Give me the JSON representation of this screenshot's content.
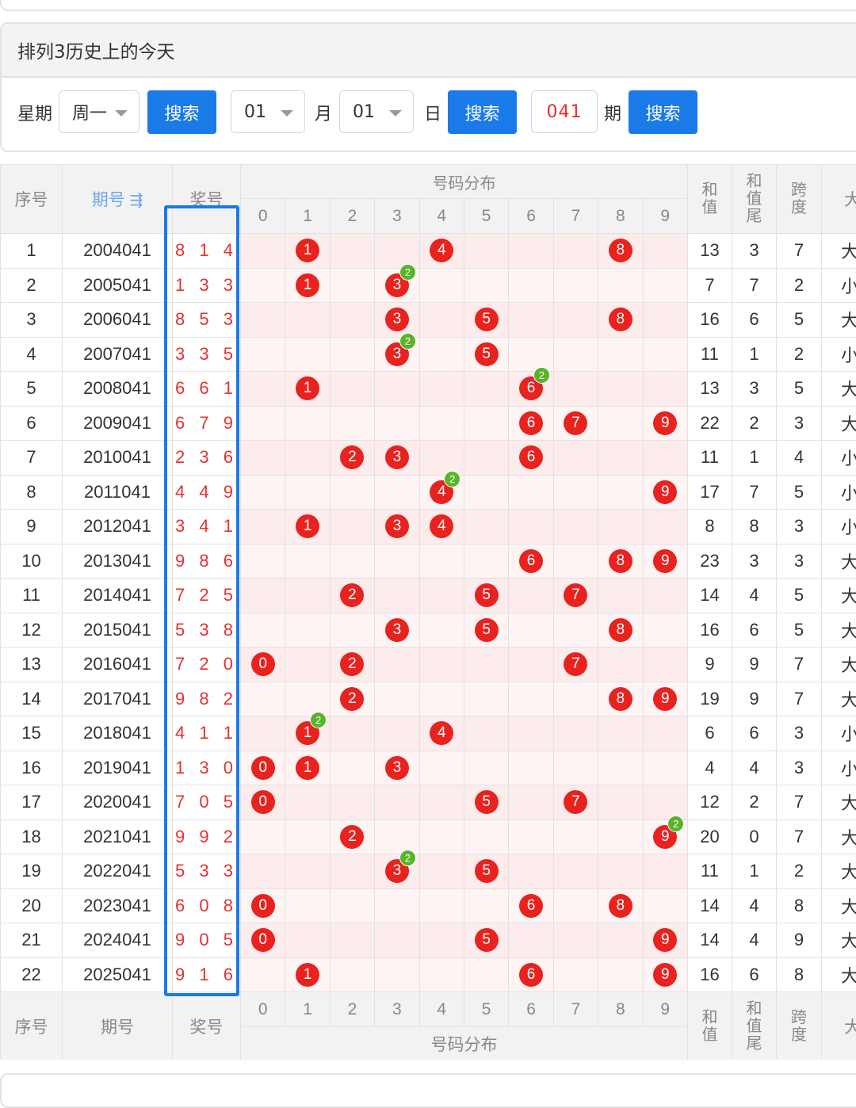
{
  "panel": {
    "title": "排列3历史上的今天",
    "weekday_label": "星期",
    "weekday_value": "周一",
    "search_label": "搜索",
    "month_value": "01",
    "month_label": "月",
    "day_value": "01",
    "day_label": "日",
    "issue_value": "041",
    "issue_label": "期"
  },
  "table": {
    "headers": {
      "seq": "序号",
      "period": "期号",
      "sort_icon": "⇶",
      "winning": "奖号",
      "distribution": "号码分布",
      "sum": [
        "和",
        "值"
      ],
      "sum_tail": [
        "和",
        "值",
        "尾"
      ],
      "span": [
        "跨",
        "度"
      ],
      "size": "大"
    },
    "digits": [
      "0",
      "1",
      "2",
      "3",
      "4",
      "5",
      "6",
      "7",
      "8",
      "9"
    ],
    "rows": [
      {
        "seq": "1",
        "period": "2004041",
        "nums": "8 1 4",
        "balls": [
          1,
          4,
          8
        ],
        "dup": null,
        "sum": "13",
        "tail": "3",
        "span": "7",
        "size": "大"
      },
      {
        "seq": "2",
        "period": "2005041",
        "nums": "1 3 3",
        "balls": [
          1,
          3
        ],
        "dup": 3,
        "sum": "7",
        "tail": "7",
        "span": "2",
        "size": "小"
      },
      {
        "seq": "3",
        "period": "2006041",
        "nums": "8 5 3",
        "balls": [
          3,
          5,
          8
        ],
        "dup": null,
        "sum": "16",
        "tail": "6",
        "span": "5",
        "size": "大"
      },
      {
        "seq": "4",
        "period": "2007041",
        "nums": "3 3 5",
        "balls": [
          3,
          5
        ],
        "dup": 3,
        "sum": "11",
        "tail": "1",
        "span": "2",
        "size": "小"
      },
      {
        "seq": "5",
        "period": "2008041",
        "nums": "6 6 1",
        "balls": [
          1,
          6
        ],
        "dup": 6,
        "sum": "13",
        "tail": "3",
        "span": "5",
        "size": "大"
      },
      {
        "seq": "6",
        "period": "2009041",
        "nums": "6 7 9",
        "balls": [
          6,
          7,
          9
        ],
        "dup": null,
        "sum": "22",
        "tail": "2",
        "span": "3",
        "size": "大"
      },
      {
        "seq": "7",
        "period": "2010041",
        "nums": "2 3 6",
        "balls": [
          2,
          3,
          6
        ],
        "dup": null,
        "sum": "11",
        "tail": "1",
        "span": "4",
        "size": "小"
      },
      {
        "seq": "8",
        "period": "2011041",
        "nums": "4 4 9",
        "balls": [
          4,
          9
        ],
        "dup": 4,
        "sum": "17",
        "tail": "7",
        "span": "5",
        "size": "小"
      },
      {
        "seq": "9",
        "period": "2012041",
        "nums": "3 4 1",
        "balls": [
          1,
          3,
          4
        ],
        "dup": null,
        "sum": "8",
        "tail": "8",
        "span": "3",
        "size": "小"
      },
      {
        "seq": "10",
        "period": "2013041",
        "nums": "9 8 6",
        "balls": [
          6,
          8,
          9
        ],
        "dup": null,
        "sum": "23",
        "tail": "3",
        "span": "3",
        "size": "大"
      },
      {
        "seq": "11",
        "period": "2014041",
        "nums": "7 2 5",
        "balls": [
          2,
          5,
          7
        ],
        "dup": null,
        "sum": "14",
        "tail": "4",
        "span": "5",
        "size": "大"
      },
      {
        "seq": "12",
        "period": "2015041",
        "nums": "5 3 8",
        "balls": [
          3,
          5,
          8
        ],
        "dup": null,
        "sum": "16",
        "tail": "6",
        "span": "5",
        "size": "大"
      },
      {
        "seq": "13",
        "period": "2016041",
        "nums": "7 2 0",
        "balls": [
          0,
          2,
          7
        ],
        "dup": null,
        "sum": "9",
        "tail": "9",
        "span": "7",
        "size": "大"
      },
      {
        "seq": "14",
        "period": "2017041",
        "nums": "9 8 2",
        "balls": [
          2,
          8,
          9
        ],
        "dup": null,
        "sum": "19",
        "tail": "9",
        "span": "7",
        "size": "大"
      },
      {
        "seq": "15",
        "period": "2018041",
        "nums": "4 1 1",
        "balls": [
          1,
          4
        ],
        "dup": 1,
        "sum": "6",
        "tail": "6",
        "span": "3",
        "size": "小"
      },
      {
        "seq": "16",
        "period": "2019041",
        "nums": "1 3 0",
        "balls": [
          0,
          1,
          3
        ],
        "dup": null,
        "sum": "4",
        "tail": "4",
        "span": "3",
        "size": "小"
      },
      {
        "seq": "17",
        "period": "2020041",
        "nums": "7 0 5",
        "balls": [
          0,
          5,
          7
        ],
        "dup": null,
        "sum": "12",
        "tail": "2",
        "span": "7",
        "size": "大"
      },
      {
        "seq": "18",
        "period": "2021041",
        "nums": "9 9 2",
        "balls": [
          2,
          9
        ],
        "dup": 9,
        "sum": "20",
        "tail": "0",
        "span": "7",
        "size": "大"
      },
      {
        "seq": "19",
        "period": "2022041",
        "nums": "5 3 3",
        "balls": [
          3,
          5
        ],
        "dup": 3,
        "sum": "11",
        "tail": "1",
        "span": "2",
        "size": "大"
      },
      {
        "seq": "20",
        "period": "2023041",
        "nums": "6 0 8",
        "balls": [
          0,
          6,
          8
        ],
        "dup": null,
        "sum": "14",
        "tail": "4",
        "span": "8",
        "size": "大"
      },
      {
        "seq": "21",
        "period": "2024041",
        "nums": "9 0 5",
        "balls": [
          0,
          5,
          9
        ],
        "dup": null,
        "sum": "14",
        "tail": "4",
        "span": "9",
        "size": "大"
      },
      {
        "seq": "22",
        "period": "2025041",
        "nums": "9 1 6",
        "balls": [
          1,
          6,
          9
        ],
        "dup": null,
        "sum": "16",
        "tail": "6",
        "span": "8",
        "size": "大"
      }
    ],
    "dup_badge": "2"
  },
  "colors": {
    "accent": "#1a7ae8",
    "ball": "#e8231f",
    "badge": "#58b42a",
    "winning_text": "#e83030"
  }
}
